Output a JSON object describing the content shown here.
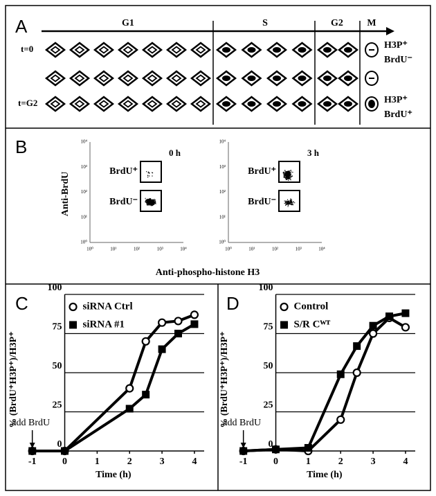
{
  "panel_a": {
    "letter": "A",
    "phases": [
      "G1",
      "S",
      "G2",
      "M"
    ],
    "row_labels": [
      "t=0",
      "t=G2"
    ],
    "m_labels": [
      "H3P⁺",
      "BrdU⁻",
      "H3P⁺",
      "BrdU⁺"
    ]
  },
  "panel_b": {
    "letter": "B",
    "ylabel": "Anti-BrdU",
    "xlabel": "Anti-phospho-histone H3",
    "times": [
      "0 h",
      "3 h"
    ],
    "gates": [
      "BrdU⁺",
      "BrdU⁻"
    ],
    "ticks": [
      "10⁰",
      "10¹",
      "10²",
      "10³",
      "10⁴"
    ]
  },
  "chart_data": [
    {
      "type": "line",
      "letter": "C",
      "x": [
        -1,
        0,
        2,
        2.5,
        3,
        3.5,
        4
      ],
      "series": [
        {
          "name": "siRNA Ctrl",
          "color": "#000000",
          "marker": "circle",
          "values": [
            0,
            0,
            40,
            70,
            82,
            83,
            87
          ]
        },
        {
          "name": "siRNA #1",
          "color": "#000000",
          "marker": "square",
          "values": [
            0,
            0,
            27,
            36,
            65,
            75,
            81
          ]
        }
      ],
      "xlim": [
        -1.1,
        4.3
      ],
      "ylim": [
        0,
        100
      ],
      "xticks": [
        -1,
        0,
        1,
        2,
        3,
        4
      ],
      "yticks": [
        0,
        25,
        50,
        75,
        100
      ],
      "xlabel": "Time (h)",
      "ylabel": "% (BrdU⁺H3P⁺)/H3P⁺",
      "annotation": "add BrdU",
      "grid": true,
      "legend": "upper left"
    },
    {
      "type": "line",
      "letter": "D",
      "x": [
        -1,
        0,
        1,
        2,
        2.5,
        3,
        3.5,
        4
      ],
      "series": [
        {
          "name": "Control",
          "color": "#000000",
          "marker": "circle",
          "values": [
            0,
            1,
            0,
            20,
            50,
            75,
            85,
            79
          ]
        },
        {
          "name": "S/R Cᵂᵀ",
          "color": "#000000",
          "marker": "square",
          "values": [
            0,
            1,
            2,
            49,
            67,
            80,
            86,
            88
          ]
        }
      ],
      "xlim": [
        -1.1,
        4.3
      ],
      "ylim": [
        0,
        100
      ],
      "xticks": [
        -1,
        0,
        1,
        2,
        3,
        4
      ],
      "yticks": [
        0,
        25,
        50,
        75,
        100
      ],
      "xlabel": "Time (h)",
      "ylabel": "% (BrdU⁺H3P⁺)/H3P⁺",
      "annotation": "add BrdU",
      "grid": true,
      "legend": "upper left"
    }
  ]
}
